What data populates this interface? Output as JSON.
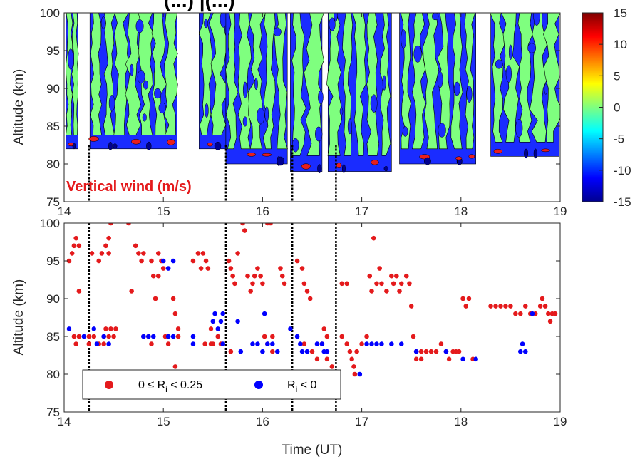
{
  "title_fragment": "(...)   |(...)",
  "chart_data": [
    {
      "type": "heatmap",
      "title": "",
      "xlabel": "",
      "ylabel": "Altitude (km)",
      "xlim": [
        14,
        19
      ],
      "ylim": [
        75,
        100
      ],
      "xticks": [
        14,
        15,
        16,
        17,
        18,
        19
      ],
      "yticks": [
        75,
        80,
        85,
        90,
        95,
        100
      ],
      "annotation": "Vertical wind (m/s)",
      "annotation_color": "#e41a1c",
      "colorbar": {
        "ticks": [
          15,
          10,
          5,
          0,
          -5,
          -10,
          -15
        ],
        "range": [
          -15,
          15
        ],
        "colormap": "jet"
      },
      "data_segments": [
        {
          "x_start": 14.02,
          "x_end": 14.14,
          "y_bottom": 82
        },
        {
          "x_start": 14.26,
          "x_end": 15.14,
          "y_bottom": 82
        },
        {
          "x_start": 15.36,
          "x_end": 15.63,
          "y_bottom": 82
        },
        {
          "x_start": 15.63,
          "x_end": 16.25,
          "y_bottom": 80
        },
        {
          "x_start": 16.28,
          "x_end": 16.6,
          "y_bottom": 79
        },
        {
          "x_start": 16.66,
          "x_end": 17.3,
          "y_bottom": 79
        },
        {
          "x_start": 17.38,
          "x_end": 18.15,
          "y_bottom": 80
        },
        {
          "x_start": 18.3,
          "x_end": 18.99,
          "y_bottom": 81
        }
      ],
      "vertical_lines_x": [
        14.25,
        15.63,
        16.3,
        16.74
      ]
    },
    {
      "type": "scatter",
      "title": "",
      "xlabel": "Time (UT)",
      "ylabel": "Altitude (km)",
      "xlim": [
        14,
        19
      ],
      "ylim": [
        75,
        100
      ],
      "xticks": [
        14,
        15,
        16,
        17,
        18,
        19
      ],
      "yticks": [
        75,
        80,
        85,
        90,
        95,
        100
      ],
      "vertical_lines_x": [
        14.25,
        15.63,
        16.3,
        16.74
      ],
      "legend": {
        "placement": "bottom-left",
        "entries": [
          {
            "label_prefix": "0 ≤ R",
            "label_sub": "i",
            "label_suffix": " < 0.25",
            "color": "#e41a1c"
          },
          {
            "label_prefix": "R",
            "label_sub": "i",
            "label_suffix": " < 0",
            "color": "#0000ff"
          }
        ]
      },
      "series": [
        {
          "name": "0 ≤ Ri < 0.25",
          "color": "#e41a1c",
          "points": [
            [
              14.05,
              95
            ],
            [
              14.08,
              96
            ],
            [
              14.1,
              97
            ],
            [
              14.12,
              98
            ],
            [
              14.15,
              97
            ],
            [
              14.15,
              91
            ],
            [
              14.12,
              84
            ],
            [
              14.1,
              85
            ],
            [
              14.15,
              85
            ],
            [
              14.25,
              85
            ],
            [
              14.3,
              85
            ],
            [
              14.25,
              84
            ],
            [
              14.35,
              84
            ],
            [
              14.4,
              84
            ],
            [
              14.4,
              85
            ],
            [
              14.45,
              85
            ],
            [
              14.5,
              85
            ],
            [
              14.28,
              96
            ],
            [
              14.35,
              95
            ],
            [
              14.38,
              96
            ],
            [
              14.42,
              97
            ],
            [
              14.45,
              98
            ],
            [
              14.47,
              100
            ],
            [
              14.45,
              96
            ],
            [
              14.42,
              86
            ],
            [
              14.47,
              86
            ],
            [
              14.52,
              86
            ],
            [
              14.65,
              100
            ],
            [
              14.68,
              91
            ],
            [
              14.72,
              97
            ],
            [
              14.75,
              96
            ],
            [
              14.78,
              95
            ],
            [
              14.8,
              96
            ],
            [
              14.8,
              85
            ],
            [
              14.85,
              85
            ],
            [
              14.88,
              95
            ],
            [
              14.88,
              84
            ],
            [
              14.9,
              93
            ],
            [
              14.92,
              90
            ],
            [
              14.95,
              93
            ],
            [
              14.95,
              96
            ],
            [
              14.98,
              95
            ],
            [
              15.0,
              94
            ],
            [
              15.02,
              85
            ],
            [
              15.05,
              84
            ],
            [
              15.1,
              90
            ],
            [
              15.12,
              88
            ],
            [
              15.15,
              86
            ],
            [
              15.15,
              85
            ],
            [
              15.12,
              81
            ],
            [
              15.3,
              95
            ],
            [
              15.35,
              96
            ],
            [
              15.38,
              94
            ],
            [
              15.4,
              96
            ],
            [
              15.43,
              95
            ],
            [
              15.45,
              94
            ],
            [
              15.42,
              84
            ],
            [
              15.48,
              84
            ],
            [
              15.5,
              84
            ],
            [
              15.48,
              86
            ],
            [
              15.55,
              85
            ],
            [
              15.58,
              84
            ],
            [
              15.66,
              95
            ],
            [
              15.68,
              94
            ],
            [
              15.7,
              93
            ],
            [
              15.72,
              92
            ],
            [
              15.68,
              83
            ],
            [
              15.75,
              96
            ],
            [
              15.8,
              100
            ],
            [
              15.82,
              99
            ],
            [
              15.85,
              93
            ],
            [
              15.88,
              91
            ],
            [
              15.9,
              92
            ],
            [
              15.92,
              93
            ],
            [
              15.95,
              94
            ],
            [
              15.98,
              93
            ],
            [
              16.0,
              92
            ],
            [
              16.05,
              100
            ],
            [
              16.08,
              100
            ],
            [
              16.02,
              85
            ],
            [
              16.05,
              84
            ],
            [
              16.1,
              85
            ],
            [
              16.1,
              83
            ],
            [
              16.18,
              94
            ],
            [
              16.2,
              93
            ],
            [
              16.22,
              92
            ],
            [
              16.35,
              95
            ],
            [
              16.4,
              94
            ],
            [
              16.42,
              92
            ],
            [
              16.45,
              91
            ],
            [
              16.48,
              90
            ],
            [
              16.42,
              84
            ],
            [
              16.5,
              83
            ],
            [
              16.55,
              82
            ],
            [
              16.6,
              84
            ],
            [
              16.62,
              86
            ],
            [
              16.65,
              85
            ],
            [
              16.65,
              82
            ],
            [
              16.7,
              81
            ],
            [
              16.8,
              92
            ],
            [
              16.85,
              92
            ],
            [
              16.8,
              85
            ],
            [
              16.85,
              84
            ],
            [
              16.88,
              83
            ],
            [
              16.9,
              82
            ],
            [
              16.92,
              81
            ],
            [
              16.93,
              80
            ],
            [
              16.95,
              83
            ],
            [
              17.0,
              84
            ],
            [
              17.05,
              85
            ],
            [
              17.08,
              93
            ],
            [
              17.1,
              91
            ],
            [
              17.12,
              98
            ],
            [
              17.15,
              92
            ],
            [
              17.18,
              94
            ],
            [
              17.2,
              92
            ],
            [
              17.25,
              91
            ],
            [
              17.3,
              93
            ],
            [
              17.32,
              92
            ],
            [
              17.35,
              93
            ],
            [
              17.38,
              91
            ],
            [
              17.4,
              92
            ],
            [
              17.45,
              93
            ],
            [
              17.48,
              92
            ],
            [
              17.5,
              89
            ],
            [
              17.52,
              85
            ],
            [
              17.55,
              83
            ],
            [
              17.6,
              83
            ],
            [
              17.65,
              83
            ],
            [
              17.7,
              83
            ],
            [
              17.75,
              83
            ],
            [
              17.8,
              84
            ],
            [
              17.85,
              83
            ],
            [
              17.88,
              82
            ],
            [
              17.92,
              83
            ],
            [
              17.95,
              83
            ],
            [
              17.98,
              83
            ],
            [
              18.02,
              90
            ],
            [
              18.05,
              89
            ],
            [
              18.08,
              90
            ],
            [
              18.12,
              82
            ],
            [
              18.3,
              89
            ],
            [
              18.35,
              89
            ],
            [
              18.4,
              89
            ],
            [
              18.45,
              89
            ],
            [
              18.5,
              89
            ],
            [
              18.55,
              88
            ],
            [
              18.6,
              88
            ],
            [
              18.65,
              89
            ],
            [
              18.7,
              88
            ],
            [
              18.75,
              88
            ],
            [
              18.8,
              89
            ],
            [
              18.82,
              90
            ],
            [
              18.85,
              89
            ],
            [
              18.88,
              88
            ],
            [
              18.92,
              88
            ],
            [
              18.95,
              88
            ],
            [
              18.9,
              87
            ],
            [
              17.55,
              82
            ],
            [
              17.6,
              82
            ]
          ]
        },
        {
          "name": "Ri < 0",
          "color": "#0000ff",
          "points": [
            [
              14.05,
              86
            ],
            [
              14.2,
              85
            ],
            [
              14.3,
              86
            ],
            [
              14.33,
              84
            ],
            [
              14.4,
              85
            ],
            [
              14.45,
              84
            ],
            [
              14.8,
              85
            ],
            [
              14.85,
              85
            ],
            [
              14.9,
              85
            ],
            [
              15.0,
              95
            ],
            [
              15.05,
              94
            ],
            [
              15.05,
              85
            ],
            [
              15.1,
              85
            ],
            [
              15.1,
              95
            ],
            [
              15.3,
              84
            ],
            [
              15.3,
              85
            ],
            [
              15.5,
              87
            ],
            [
              15.52,
              88
            ],
            [
              15.55,
              86
            ],
            [
              15.58,
              87
            ],
            [
              15.6,
              88
            ],
            [
              15.6,
              84
            ],
            [
              15.75,
              87
            ],
            [
              15.78,
              83
            ],
            [
              15.9,
              84
            ],
            [
              15.95,
              84
            ],
            [
              16.0,
              83
            ],
            [
              16.02,
              88
            ],
            [
              16.05,
              84
            ],
            [
              16.1,
              84
            ],
            [
              16.15,
              83
            ],
            [
              16.28,
              86
            ],
            [
              16.35,
              85
            ],
            [
              16.38,
              84
            ],
            [
              16.4,
              83
            ],
            [
              16.45,
              83
            ],
            [
              16.55,
              84
            ],
            [
              16.6,
              84
            ],
            [
              16.62,
              83
            ],
            [
              16.65,
              83
            ],
            [
              16.98,
              80
            ],
            [
              17.05,
              84
            ],
            [
              17.1,
              84
            ],
            [
              17.15,
              84
            ],
            [
              17.2,
              84
            ],
            [
              17.3,
              84
            ],
            [
              17.4,
              84
            ],
            [
              17.55,
              83
            ],
            [
              17.85,
              83
            ],
            [
              18.02,
              82
            ],
            [
              18.15,
              82
            ],
            [
              18.6,
              83
            ],
            [
              18.62,
              84
            ],
            [
              18.65,
              83
            ],
            [
              18.72,
              88
            ]
          ]
        }
      ]
    }
  ]
}
